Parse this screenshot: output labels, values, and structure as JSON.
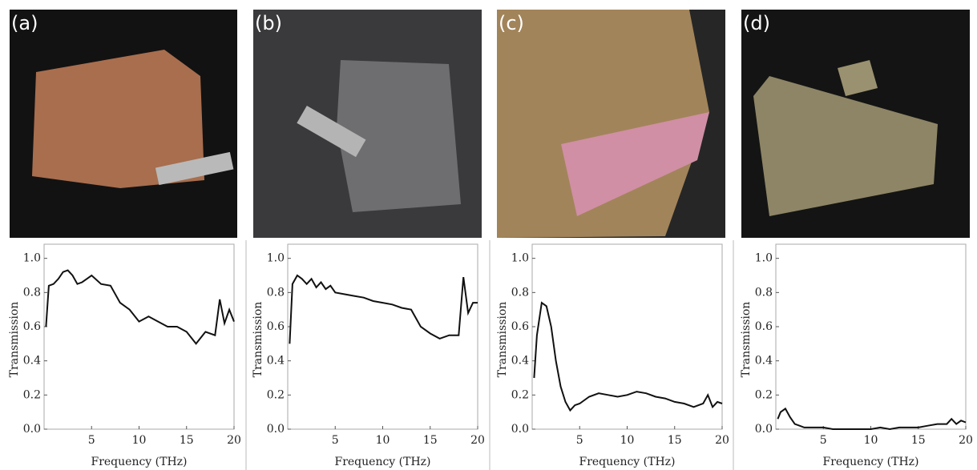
{
  "chart_data": [
    {
      "type": "line",
      "panel_label": "(a)",
      "xlabel": "Frequency (THz)",
      "ylabel": "Transmission",
      "color": "#111111",
      "x": [
        0.2,
        0.5,
        1,
        1.5,
        2,
        2.5,
        3,
        3.5,
        4,
        4.5,
        5,
        6,
        7,
        8,
        9,
        10,
        11,
        12,
        13,
        14,
        15,
        16,
        17,
        18,
        18.5,
        19,
        19.5,
        20
      ],
      "values": [
        0.6,
        0.84,
        0.85,
        0.88,
        0.92,
        0.93,
        0.9,
        0.85,
        0.86,
        0.88,
        0.9,
        0.85,
        0.84,
        0.74,
        0.7,
        0.63,
        0.66,
        0.63,
        0.6,
        0.6,
        0.57,
        0.5,
        0.57,
        0.55,
        0.76,
        0.62,
        0.7,
        0.63
      ],
      "xlim": [
        0,
        20
      ],
      "xticks": [
        5,
        10,
        15,
        20
      ],
      "ylim": [
        0,
        1.05
      ],
      "yticks": [
        {
          "value": 0,
          "label": "0.0"
        },
        0.2,
        0.4,
        0.6,
        0.8,
        {
          "value": 1,
          "label": "1.0"
        }
      ]
    },
    {
      "type": "line",
      "panel_label": "(b)",
      "xlabel": "Frequency (THz)",
      "ylabel": "Transmission",
      "color": "#111111",
      "x": [
        0.2,
        0.5,
        1,
        1.5,
        2,
        2.5,
        3,
        3.5,
        4,
        4.5,
        5,
        6,
        7,
        8,
        9,
        10,
        11,
        12,
        13,
        14,
        15,
        16,
        17,
        18,
        18.5,
        19,
        19.5,
        20
      ],
      "values": [
        0.5,
        0.85,
        0.9,
        0.88,
        0.85,
        0.88,
        0.83,
        0.86,
        0.82,
        0.84,
        0.8,
        0.79,
        0.78,
        0.77,
        0.75,
        0.74,
        0.73,
        0.71,
        0.7,
        0.6,
        0.56,
        0.53,
        0.55,
        0.55,
        0.89,
        0.68,
        0.74,
        0.74
      ],
      "xlim": [
        0,
        20
      ],
      "xticks": [
        5,
        10,
        15,
        20
      ],
      "ylim": [
        0,
        1.05
      ],
      "yticks": [
        {
          "value": 0,
          "label": "0.0"
        },
        0.2,
        0.4,
        0.6,
        0.8,
        {
          "value": 1,
          "label": "1.0"
        }
      ]
    },
    {
      "type": "line",
      "panel_label": "(c)",
      "xlabel": "Frequency (THz)",
      "ylabel": "Transmission",
      "color": "#111111",
      "x": [
        0.2,
        0.5,
        1,
        1.5,
        2,
        2.5,
        3,
        3.5,
        4,
        4.5,
        5,
        6,
        7,
        8,
        9,
        10,
        11,
        12,
        13,
        14,
        15,
        16,
        17,
        18,
        18.5,
        19,
        19.5,
        20
      ],
      "values": [
        0.3,
        0.55,
        0.74,
        0.72,
        0.6,
        0.4,
        0.25,
        0.16,
        0.11,
        0.14,
        0.15,
        0.19,
        0.21,
        0.2,
        0.19,
        0.2,
        0.22,
        0.21,
        0.19,
        0.18,
        0.16,
        0.15,
        0.13,
        0.15,
        0.2,
        0.13,
        0.16,
        0.15
      ],
      "xlim": [
        0,
        20
      ],
      "xticks": [
        5,
        10,
        15,
        20
      ],
      "ylim": [
        0,
        1.05
      ],
      "yticks": [
        {
          "value": 0,
          "label": "0.0"
        },
        0.2,
        0.4,
        0.6,
        0.8,
        {
          "value": 1,
          "label": "1.0"
        }
      ]
    },
    {
      "type": "line",
      "panel_label": "(d)",
      "xlabel": "Frequency (THz)",
      "ylabel": "Transmission",
      "color": "#111111",
      "x": [
        0.2,
        0.5,
        1,
        1.5,
        2,
        2.5,
        3,
        3.5,
        4,
        4.5,
        5,
        6,
        7,
        8,
        9,
        10,
        11,
        12,
        13,
        14,
        15,
        16,
        17,
        18,
        18.5,
        19,
        19.5,
        20
      ],
      "values": [
        0.06,
        0.1,
        0.12,
        0.07,
        0.03,
        0.02,
        0.01,
        0.01,
        0.01,
        0.01,
        0.01,
        0.0,
        0.0,
        0.0,
        0.0,
        0.0,
        0.01,
        0.0,
        0.01,
        0.01,
        0.01,
        0.02,
        0.03,
        0.03,
        0.06,
        0.03,
        0.05,
        0.04
      ],
      "xlim": [
        0,
        20
      ],
      "xticks": [
        5,
        10,
        15,
        20
      ],
      "ylim": [
        0,
        1.05
      ],
      "yticks": [
        {
          "value": 0,
          "label": "0.0"
        },
        0.2,
        0.4,
        0.6,
        0.8,
        {
          "value": 1,
          "label": "1.0"
        }
      ]
    }
  ]
}
